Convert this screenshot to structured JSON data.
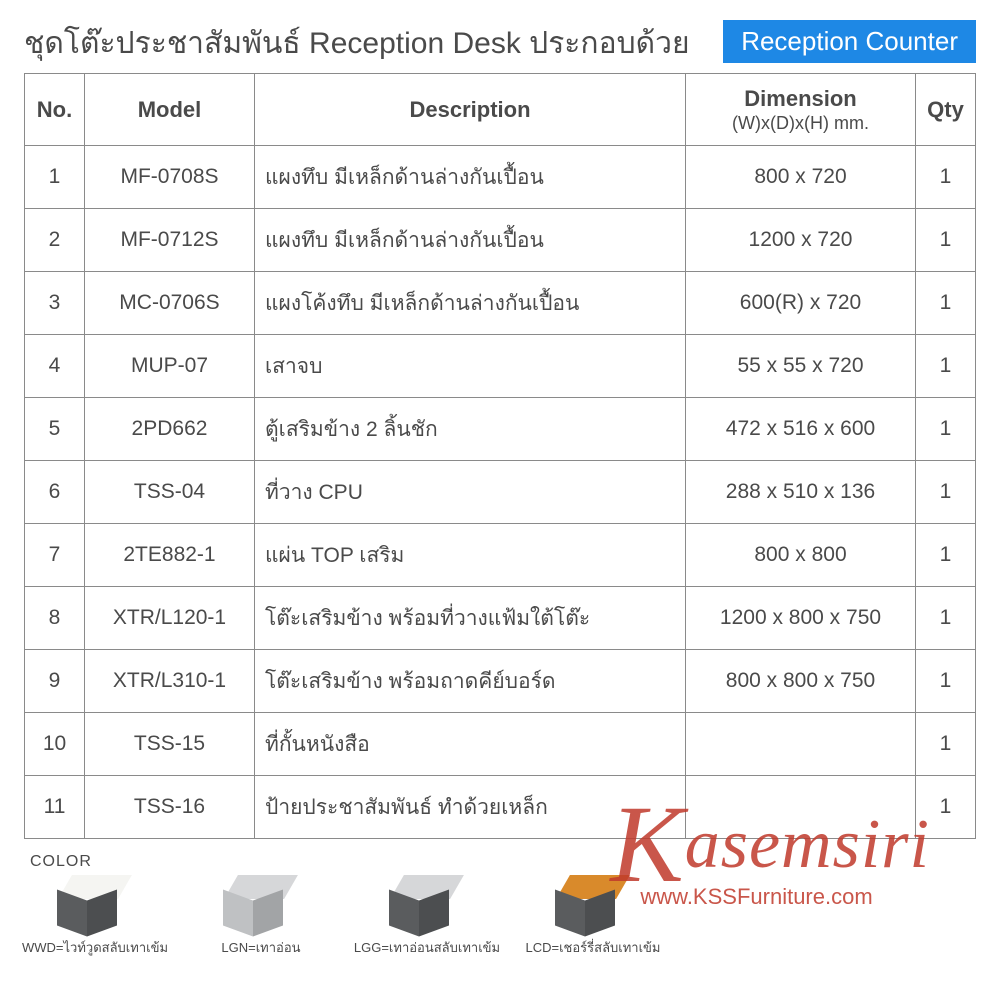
{
  "header": {
    "title": "ชุดโต๊ะประชาสัมพันธ์ Reception Desk ประกอบด้วย",
    "badge": "Reception Counter"
  },
  "table": {
    "columns": {
      "no": "No.",
      "model": "Model",
      "desc": "Description",
      "dim": "Dimension",
      "dim_sub": "(W)x(D)x(H) mm.",
      "qty": "Qty"
    },
    "rows": [
      {
        "no": "1",
        "model": "MF-0708S",
        "desc": "แผงทึบ มีเหล็กด้านล่างกันเปื้อน",
        "dim": "800 x 720",
        "qty": "1"
      },
      {
        "no": "2",
        "model": "MF-0712S",
        "desc": "แผงทึบ มีเหล็กด้านล่างกันเปื้อน",
        "dim": "1200 x 720",
        "qty": "1"
      },
      {
        "no": "3",
        "model": "MC-0706S",
        "desc": "แผงโค้งทึบ มีเหล็กด้านล่างกันเปื้อน",
        "dim": "600(R) x 720",
        "qty": "1"
      },
      {
        "no": "4",
        "model": "MUP-07",
        "desc": "เสาจบ",
        "dim": "55 x 55 x 720",
        "qty": "1"
      },
      {
        "no": "5",
        "model": "2PD662",
        "desc": "ตู้เสริมข้าง 2 ลิ้นชัก",
        "dim": "472 x 516 x 600",
        "qty": "1"
      },
      {
        "no": "6",
        "model": "TSS-04",
        "desc": "ที่วาง CPU",
        "dim": "288 x 510 x 136",
        "qty": "1"
      },
      {
        "no": "7",
        "model": "2TE882-1",
        "desc": "แผ่น TOP เสริม",
        "dim": "800 x 800",
        "qty": "1"
      },
      {
        "no": "8",
        "model": "XTR/L120-1",
        "desc": "โต๊ะเสริมข้าง พร้อมที่วางแฟ้มใต้โต๊ะ",
        "dim": "1200 x 800 x 750",
        "qty": "1"
      },
      {
        "no": "9",
        "model": "XTR/L310-1",
        "desc": "โต๊ะเสริมข้าง พร้อมถาดคีย์บอร์ด",
        "dim": "800 x 800 x 750",
        "qty": "1"
      },
      {
        "no": "10",
        "model": "TSS-15",
        "desc": "ที่กั้นหนังสือ",
        "dim": "",
        "qty": "1"
      },
      {
        "no": "11",
        "model": "TSS-16",
        "desc": "ป้ายประชาสัมพันธ์ ทำด้วยเหล็ก",
        "dim": "",
        "qty": "1"
      }
    ]
  },
  "colors": {
    "label": "COLOR",
    "swatches": [
      {
        "code": "WWD",
        "name": "ไวท์วูดสลับเทาเข้ม",
        "top": "#f5f5f2",
        "side": "#5a5c5e"
      },
      {
        "code": "LGN",
        "name": "เทาอ่อน",
        "top": "#d6d7d9",
        "side": "#bfc1c3"
      },
      {
        "code": "LGG",
        "name": "เทาอ่อนสลับเทาเข้ม",
        "top": "#d6d7d9",
        "side": "#5a5c5e"
      },
      {
        "code": "LCD",
        "name": "เชอร์รี่สลับเทาเข้ม",
        "top": "#d98a2b",
        "side": "#5a5c5e"
      }
    ]
  },
  "watermark": {
    "brand_head": "K",
    "brand_tail": "asemsiri",
    "url": "www.KSSFurniture.com",
    "color": "#c0392b"
  },
  "palette": {
    "text": "#4a4a4a",
    "border": "#8a8a8a",
    "badge_bg": "#1e88e5",
    "badge_fg": "#ffffff",
    "background": "#ffffff"
  }
}
